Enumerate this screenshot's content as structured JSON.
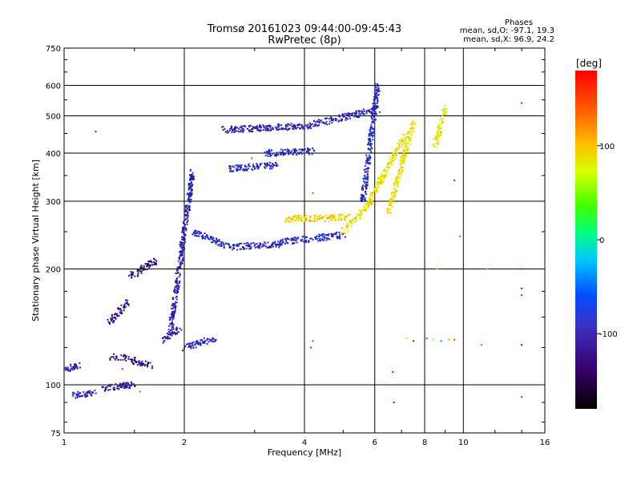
{
  "chart_data": {
    "type": "scatter",
    "title_line1": "Tromsø 20161023 09:44:00-09:45:43",
    "title_line2": "RwPretec (8p)",
    "xlabel": "Frequency [MHz]",
    "ylabel": "Stationary phase Virtual Height [km]",
    "x_scale": "log",
    "y_scale": "log",
    "xlim": [
      1,
      16
    ],
    "ylim": [
      75,
      750
    ],
    "x_ticks": [
      1,
      2,
      4,
      6,
      8,
      10,
      16
    ],
    "y_ticks": [
      75,
      100,
      200,
      300,
      400,
      500,
      600,
      750
    ],
    "grid": true,
    "stats": {
      "heading": "Phases",
      "o_line": "mean, sd,O: -97.1, 19.3",
      "x_line": "mean, sd,X:  96.9, 24.2"
    },
    "colorbar": {
      "label": "[deg]",
      "range": [
        -180,
        180
      ],
      "ticks": [
        {
          "value": 100,
          "label": "100"
        },
        {
          "value": 0,
          "label": "0"
        },
        {
          "value": -100,
          "label": "-100"
        }
      ]
    },
    "traces": [
      {
        "x": [
          1.0,
          1.1
        ],
        "y": [
          110,
          112
        ],
        "phase": -110
      },
      {
        "x": [
          1.05,
          1.2
        ],
        "y": [
          94,
          95
        ],
        "phase": -105
      },
      {
        "x": [
          1.25,
          1.5
        ],
        "y": [
          98,
          100
        ],
        "phase": -120
      },
      {
        "x": [
          1.3,
          1.35
        ],
        "y": [
          118,
          118
        ],
        "phase": -130
      },
      {
        "x": [
          1.3,
          1.45
        ],
        "y": [
          145,
          165
        ],
        "phase": -125
      },
      {
        "x": [
          1.4,
          1.65
        ],
        "y": [
          118,
          112
        ],
        "phase": -130
      },
      {
        "x": [
          1.45,
          1.7
        ],
        "y": [
          190,
          210
        ],
        "phase": -135
      },
      {
        "x": [
          1.75,
          1.95
        ],
        "y": [
          130,
          140
        ],
        "phase": -110
      },
      {
        "x": [
          1.85,
          2.1
        ],
        "y": [
          140,
          360
        ],
        "phase": -110
      },
      {
        "x": [
          2.0,
          2.4
        ],
        "y": [
          125,
          132
        ],
        "phase": -100
      },
      {
        "x": [
          2.1,
          2.6
        ],
        "y": [
          250,
          228
        ],
        "phase": -100
      },
      {
        "x": [
          2.6,
          3.5
        ],
        "y": [
          228,
          232
        ],
        "phase": -105
      },
      {
        "x": [
          3.5,
          5.0
        ],
        "y": [
          235,
          245
        ],
        "phase": -95
      },
      {
        "x": [
          3.6,
          5.2
        ],
        "y": [
          270,
          272
        ],
        "phase": 100
      },
      {
        "x": [
          5.0,
          5.9
        ],
        "y": [
          250,
          300
        ],
        "phase": 95
      },
      {
        "x": [
          5.6,
          6.1
        ],
        "y": [
          300,
          600
        ],
        "phase": -100
      },
      {
        "x": [
          5.8,
          7.2
        ],
        "y": [
          300,
          450
        ],
        "phase": 95
      },
      {
        "x": [
          2.5,
          4.0
        ],
        "y": [
          460,
          470
        ],
        "phase": -110
      },
      {
        "x": [
          4.0,
          6.1
        ],
        "y": [
          470,
          520
        ],
        "phase": -105
      },
      {
        "x": [
          3.2,
          4.2
        ],
        "y": [
          400,
          405
        ],
        "phase": -100
      },
      {
        "x": [
          8.5,
          9.0
        ],
        "y": [
          420,
          520
        ],
        "phase": 90
      },
      {
        "x": [
          6.5,
          7.5
        ],
        "y": [
          280,
          480
        ],
        "phase": 90
      },
      {
        "x": [
          2.6,
          3.4
        ],
        "y": [
          365,
          372
        ],
        "phase": -100
      }
    ],
    "outliers": [
      {
        "x": 1.4,
        "y": 110,
        "phase": 175
      },
      {
        "x": 1.55,
        "y": 96,
        "phase": 150
      },
      {
        "x": 1.2,
        "y": 455,
        "phase": -100
      },
      {
        "x": 2.95,
        "y": 388,
        "phase": 150
      },
      {
        "x": 4.2,
        "y": 315,
        "phase": 150
      },
      {
        "x": 4.2,
        "y": 130,
        "phase": 160
      },
      {
        "x": 4.15,
        "y": 125,
        "phase": 170
      },
      {
        "x": 6.65,
        "y": 108,
        "phase": 160
      },
      {
        "x": 6.7,
        "y": 90,
        "phase": -100
      },
      {
        "x": 8.8,
        "y": 455,
        "phase": 110
      },
      {
        "x": 9.0,
        "y": 530,
        "phase": 70
      },
      {
        "x": 9.5,
        "y": 340,
        "phase": -100
      },
      {
        "x": 9.8,
        "y": 243,
        "phase": -40
      },
      {
        "x": 8.6,
        "y": 200,
        "phase": 110
      },
      {
        "x": 11.5,
        "y": 200,
        "phase": 130
      },
      {
        "x": 14.0,
        "y": 540,
        "phase": 175
      },
      {
        "x": 14.0,
        "y": 178,
        "phase": -110
      },
      {
        "x": 14.0,
        "y": 200,
        "phase": 170
      },
      {
        "x": 14.0,
        "y": 171,
        "phase": -60
      },
      {
        "x": 14.0,
        "y": 127,
        "phase": -120
      },
      {
        "x": 14.0,
        "y": 93,
        "phase": -60
      },
      {
        "x": 8.1,
        "y": 132,
        "phase": 170
      },
      {
        "x": 8.4,
        "y": 131,
        "phase": 60
      },
      {
        "x": 8.8,
        "y": 130,
        "phase": -40
      },
      {
        "x": 9.2,
        "y": 131,
        "phase": 120
      },
      {
        "x": 9.5,
        "y": 131,
        "phase": 160
      },
      {
        "x": 7.5,
        "y": 130,
        "phase": -100
      },
      {
        "x": 11.1,
        "y": 127,
        "phase": 150
      },
      {
        "x": 7.2,
        "y": 132,
        "phase": 100
      }
    ]
  }
}
